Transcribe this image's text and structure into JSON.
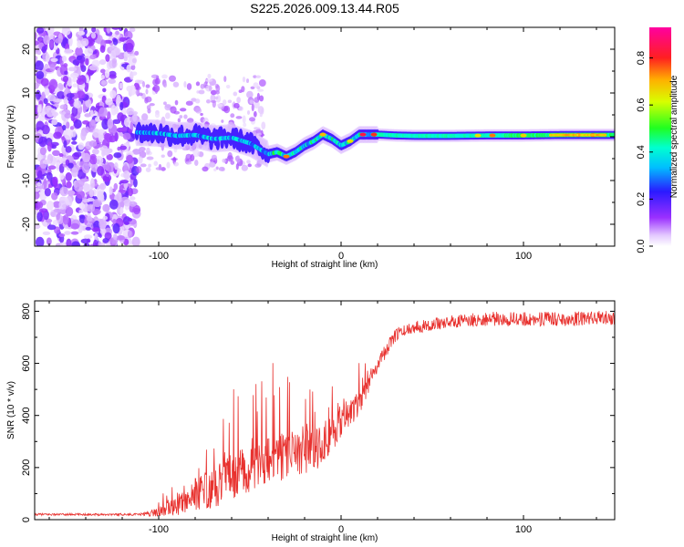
{
  "title": "S225.2026.009.13.44.R05",
  "chart_data": [
    {
      "type": "heatmap",
      "xlabel": "Height of straight line (km)",
      "ylabel": "Frequency (Hz)",
      "xlim": [
        -168,
        150
      ],
      "ylim": [
        -25,
        25
      ],
      "xticks": [
        -100,
        0,
        100
      ],
      "yticks": [
        -20,
        -10,
        0,
        10,
        20
      ],
      "colorbar": {
        "label": "Normalized spectral amplitude",
        "range": [
          0,
          0.93
        ],
        "ticks": [
          0.0,
          0.2,
          0.4,
          0.6,
          0.8
        ],
        "colormap": "rainbow (white-violet-blue-cyan-green-yellow-orange-red-magenta)"
      },
      "frequency_track": {
        "x": [
          -112,
          -100,
          -90,
          -80,
          -70,
          -60,
          -50,
          -40,
          -35,
          -30,
          -25,
          -20,
          -15,
          -10,
          -5,
          0,
          5,
          10,
          15,
          20,
          30,
          40,
          60,
          80,
          100,
          120,
          140,
          150
        ],
        "y": [
          1,
          0.8,
          0.2,
          0.4,
          -0.5,
          -0.2,
          -1.5,
          -4,
          -3.5,
          -4.5,
          -3.5,
          -2,
          -1,
          0.5,
          -0.5,
          -2,
          -1,
          0.5,
          0.5,
          0.5,
          0.3,
          0.2,
          0.2,
          0.3,
          0.3,
          0.4,
          0.4,
          0.4
        ]
      },
      "noise_region_x": [
        -168,
        -112
      ]
    },
    {
      "type": "line",
      "xlabel": "Height of straight line (km)",
      "ylabel": "SNR (10 * v/v)",
      "xlim": [
        -168,
        150
      ],
      "ylim": [
        0,
        840
      ],
      "xticks": [
        -100,
        0,
        100
      ],
      "yticks": [
        0,
        200,
        400,
        600,
        800
      ],
      "color": "#e8322f",
      "series": {
        "name": "SNR",
        "envelope_x": [
          -168,
          -110,
          -100,
          -90,
          -80,
          -70,
          -60,
          -50,
          -40,
          -30,
          -20,
          -10,
          0,
          10,
          20,
          30,
          40,
          60,
          80,
          100,
          120,
          150
        ],
        "envelope_y": [
          20,
          20,
          30,
          50,
          100,
          120,
          170,
          200,
          220,
          250,
          260,
          280,
          380,
          450,
          600,
          710,
          740,
          760,
          770,
          770,
          770,
          775
        ],
        "noise_amplitude": [
          5,
          5,
          25,
          50,
          90,
          110,
          130,
          140,
          140,
          130,
          120,
          110,
          90,
          70,
          40,
          30,
          30,
          30,
          35,
          35,
          35,
          35
        ]
      }
    }
  ]
}
